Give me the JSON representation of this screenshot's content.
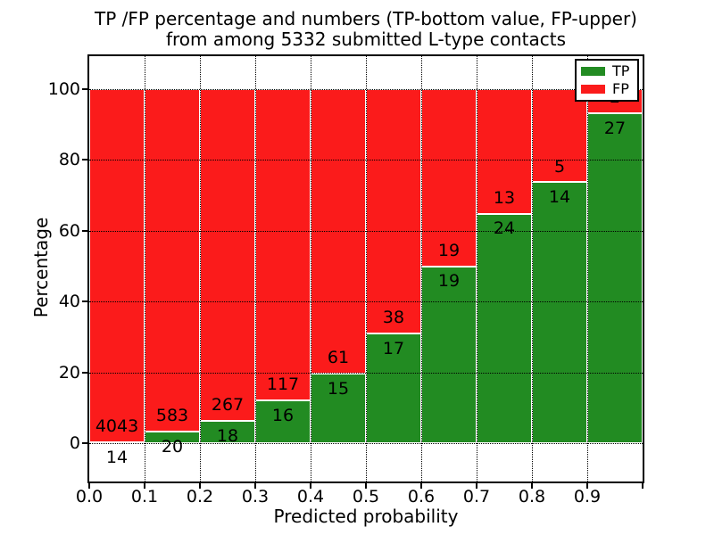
{
  "figure": {
    "title_line1": "TP /FP percentage and numbers (TP-bottom value, FP-upper)",
    "title_line2": "from among 5332 submitted L-type contacts"
  },
  "chart_data": {
    "type": "bar",
    "subtype": "stacked-percentage",
    "title": "TP /FP percentage and numbers (TP-bottom value, FP-upper) from among 5332 submitted L-type contacts",
    "xlabel": "Predicted probability",
    "ylabel": "Percentage",
    "total_contacts": 5332,
    "bin_width": 0.1,
    "bin_starts": [
      0.0,
      0.1,
      0.2,
      0.3,
      0.4,
      0.5,
      0.6,
      0.7,
      0.8,
      0.9
    ],
    "categories": [
      "0.0-0.1",
      "0.1-0.2",
      "0.2-0.3",
      "0.3-0.4",
      "0.4-0.5",
      "0.5-0.6",
      "0.6-0.7",
      "0.7-0.8",
      "0.8-0.9",
      "0.9-1.0"
    ],
    "series": [
      {
        "name": "TP",
        "color": "#228b22",
        "counts": [
          14,
          20,
          18,
          16,
          15,
          17,
          19,
          24,
          14,
          27
        ]
      },
      {
        "name": "FP",
        "color": "#fb1b1b",
        "counts": [
          4043,
          583,
          267,
          117,
          61,
          38,
          19,
          13,
          5,
          2
        ]
      }
    ],
    "bars_annotation": "TP count printed just below each TP/FP boundary, FP count just above it",
    "xticks": [
      "0.0",
      "0.1",
      "0.2",
      "0.3",
      "0.4",
      "0.5",
      "0.6",
      "0.7",
      "0.8",
      "0.9"
    ],
    "yticks": [
      0,
      20,
      40,
      60,
      80,
      100
    ],
    "xlim": [
      0.0,
      1.0
    ],
    "ylim": [
      -10.8,
      109.4
    ],
    "grid": "dotted",
    "background_color": "#ffffff",
    "axis_color": "#000000",
    "legend": {
      "position": "upper right",
      "entries": [
        {
          "label": "TP",
          "color": "#228b22"
        },
        {
          "label": "FP",
          "color": "#fb1b1b"
        }
      ]
    }
  }
}
